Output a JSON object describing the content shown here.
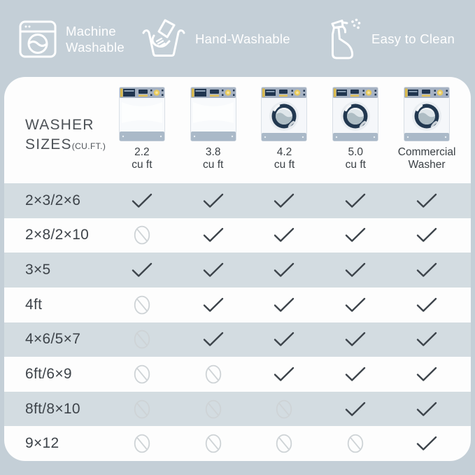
{
  "badges": [
    {
      "icon": "washing-machine-icon",
      "line1": "Machine",
      "line2": "Washable"
    },
    {
      "icon": "hand-wash-icon",
      "line1": "Hand-Washable",
      "line2": ""
    },
    {
      "icon": "spray-bottle-icon",
      "line1": "Easy to Clean",
      "line2": ""
    }
  ],
  "header": {
    "title_line1": "WASHER",
    "title_line2": "SIZES",
    "title_unit": "(CU.FT.)"
  },
  "chart_data": {
    "type": "table",
    "columns": [
      {
        "label_line1": "2.2",
        "label_line2": "cu ft",
        "washer_type": "top-load"
      },
      {
        "label_line1": "3.8",
        "label_line2": "cu ft",
        "washer_type": "top-load"
      },
      {
        "label_line1": "4.2",
        "label_line2": "cu ft",
        "washer_type": "front-load"
      },
      {
        "label_line1": "5.0",
        "label_line2": "cu ft",
        "washer_type": "front-load"
      },
      {
        "label_line1": "Commercial",
        "label_line2": "Washer",
        "washer_type": "front-load"
      }
    ],
    "rows": [
      {
        "label": "2×3/2×6",
        "values": [
          "yes",
          "yes",
          "yes",
          "yes",
          "yes"
        ]
      },
      {
        "label": "2×8/2×10",
        "values": [
          "no",
          "yes",
          "yes",
          "yes",
          "yes"
        ]
      },
      {
        "label": "3×5",
        "values": [
          "yes",
          "yes",
          "yes",
          "yes",
          "yes"
        ]
      },
      {
        "label": "4ft",
        "values": [
          "no",
          "yes",
          "yes",
          "yes",
          "yes"
        ]
      },
      {
        "label": "4×6/5×7",
        "values": [
          "no",
          "yes",
          "yes",
          "yes",
          "yes"
        ]
      },
      {
        "label": "6ft/6×9",
        "values": [
          "no",
          "no",
          "yes",
          "yes",
          "yes"
        ]
      },
      {
        "label": "8ft/8×10",
        "values": [
          "no",
          "no",
          "no",
          "yes",
          "yes"
        ]
      },
      {
        "label": "9×12",
        "values": [
          "no",
          "no",
          "no",
          "no",
          "yes"
        ]
      }
    ]
  },
  "colors": {
    "page_bg": "#c4cfd7",
    "card_bg": "#fdfdfd",
    "shaded_row": "#d3dce1",
    "check": "#3d444b",
    "not_recommended": "#ced3d6",
    "navy_accent": "#20354f",
    "gold_accent": "#e8c95c",
    "panel_gray": "#a6b2c3",
    "text_dark": "#3e444a",
    "badge_text": "#ffffff"
  }
}
